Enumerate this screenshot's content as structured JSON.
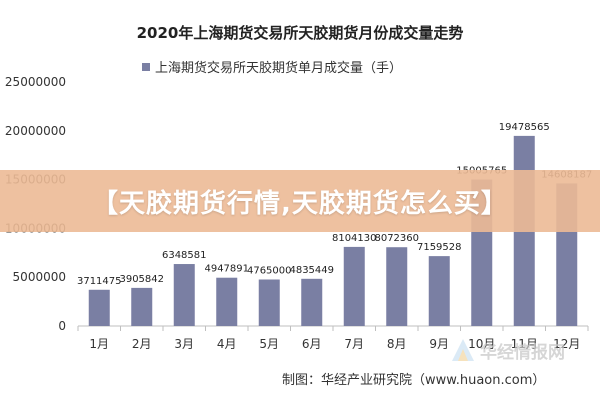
{
  "chart_data": {
    "type": "bar",
    "title": "2020年上海期货交易所天胶期货月份成交量走势",
    "series": [
      {
        "name": "上海期货交易所天胶期货单月成交量（手）",
        "values": [
          3711475,
          3905842,
          6348581,
          4947891,
          4765000,
          4835449,
          8104130,
          8072360,
          7159528,
          15005765,
          19478565,
          14608187
        ]
      }
    ],
    "categories": [
      "1月",
      "2月",
      "3月",
      "4月",
      "5月",
      "6月",
      "7月",
      "8月",
      "9月",
      "10月",
      "11月",
      "12月"
    ],
    "data_labels": [
      "3711475",
      "3905842",
      "6348581",
      "4947891",
      "4765000",
      "4835449",
      "8104130",
      "8072360",
      "7159528",
      "15005765",
      "19478565",
      "14608187"
    ],
    "y_ticks": [
      "0",
      "5000000",
      "10000000",
      "15000000",
      "20000000",
      "25000000"
    ],
    "ylim": [
      0,
      25000000
    ],
    "legend_position": "top-center",
    "grid": false,
    "bar_color": "#7a7fa3",
    "source": "制图：华经产业研究院（www.huaon.com）"
  },
  "banner": {
    "text": "【天胶期货行情,天胶期货怎么买】"
  },
  "watermark": {
    "text": "华经情报网"
  }
}
